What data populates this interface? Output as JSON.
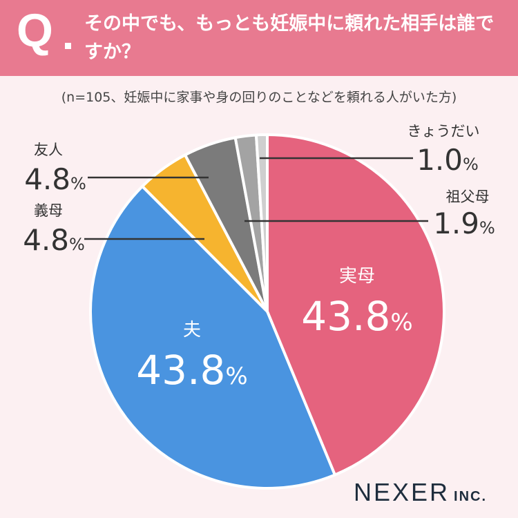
{
  "header": {
    "q_letter": "Q",
    "question": "その中でも、もっとも妊娠中に頼れた相手は誰ですか？"
  },
  "subtitle": "(n=105、妊娠中に家事や身の回りのことなどを頼れる人がいた方)",
  "chart_data": {
    "type": "pie",
    "title": "その中でも、もっとも妊娠中に頼れた相手は誰ですか？",
    "n": 105,
    "unit": "%",
    "slices": [
      {
        "label": "実母",
        "value": 43.8,
        "color": "#e5637e"
      },
      {
        "label": "夫",
        "value": 43.8,
        "color": "#4a94e0"
      },
      {
        "label": "義母",
        "value": 4.8,
        "color": "#f6b42f"
      },
      {
        "label": "友人",
        "value": 4.8,
        "color": "#7b7b7b"
      },
      {
        "label": "祖父母",
        "value": 1.9,
        "color": "#a3a3a3"
      },
      {
        "label": "きょうだい",
        "value": 1.0,
        "color": "#cfcfcf"
      }
    ]
  },
  "logo": {
    "main": "NEXER",
    "suffix": "INC."
  }
}
